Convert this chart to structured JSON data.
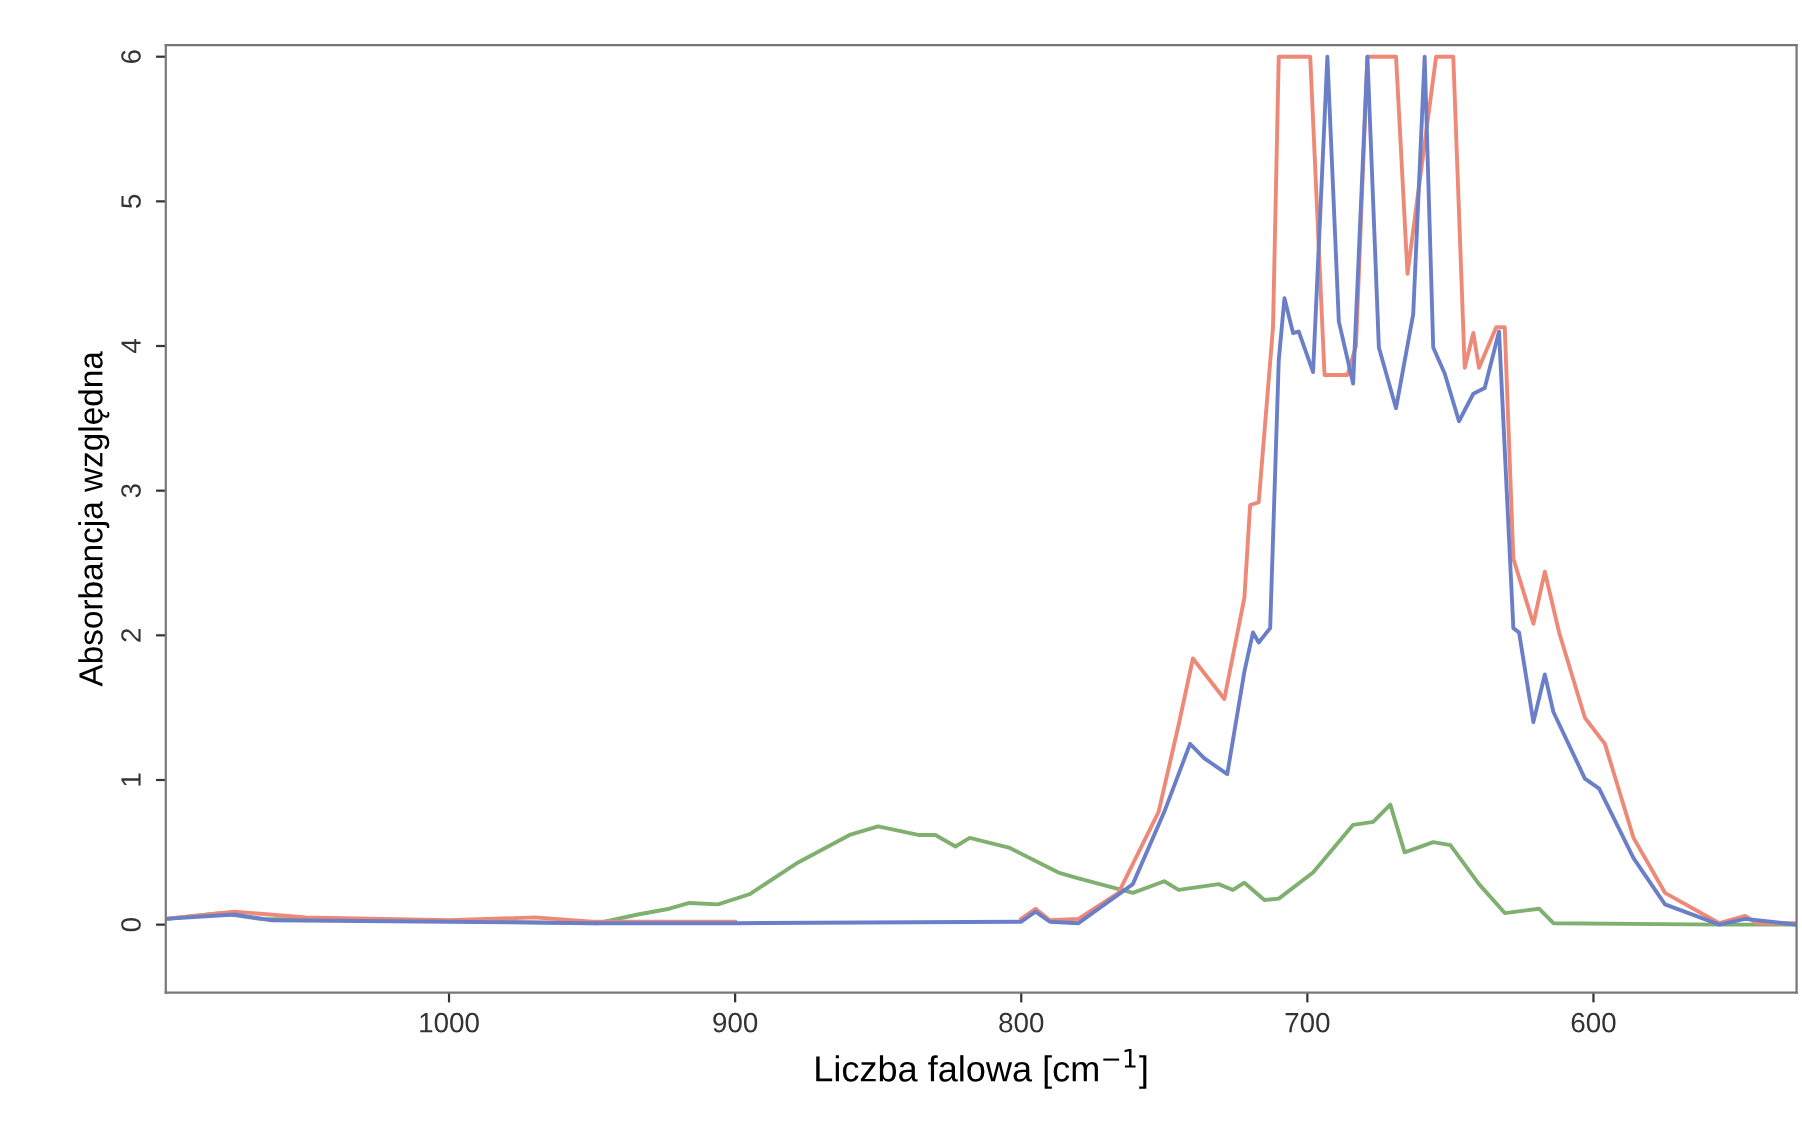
{
  "chart_data": {
    "type": "line",
    "xlabel": "Liczba falowa [cm$^{−1}$]",
    "ylabel": "Absorbancja względna",
    "xlim": [
      1099,
      529
    ],
    "ylim": [
      -0.47,
      6.08
    ],
    "xticks": [
      1000,
      900,
      800,
      700,
      600
    ],
    "yticks": [
      0,
      1,
      2,
      3,
      4,
      5,
      6
    ],
    "series": [
      {
        "color": "#7fb070",
        "x": [
          1099,
          1080,
          1066,
          1017,
          948,
          934,
          923,
          916,
          906,
          895,
          878,
          860,
          850,
          836,
          830,
          823,
          818,
          804,
          787,
          780,
          761,
          750,
          745,
          731,
          726,
          722,
          715,
          710,
          698,
          684,
          677,
          671,
          666,
          656,
          650,
          640,
          631,
          619,
          614,
          556,
          529
        ],
        "values": [
          0.04,
          0.08,
          0.04,
          0.03,
          0.01,
          0.07,
          0.11,
          0.15,
          0.14,
          0.21,
          0.43,
          0.62,
          0.68,
          0.62,
          0.62,
          0.54,
          0.6,
          0.53,
          0.36,
          0.32,
          0.22,
          0.3,
          0.24,
          0.28,
          0.24,
          0.29,
          0.17,
          0.18,
          0.36,
          0.69,
          0.71,
          0.83,
          0.5,
          0.57,
          0.55,
          0.28,
          0.08,
          0.11,
          0.01,
          0.0,
          0.0
        ]
      },
      {
        "color": "#ee8877",
        "x": [
          1099,
          1075,
          1050,
          1000,
          970,
          950,
          900,
          850,
          800,
          795,
          790,
          780,
          766,
          752,
          745,
          740,
          729,
          722,
          720,
          717,
          712,
          710,
          699,
          694,
          686,
          683,
          679,
          669,
          665,
          655,
          649,
          645,
          642,
          640,
          634,
          631,
          628,
          621,
          617,
          612,
          603,
          596,
          586,
          575,
          556,
          547,
          543,
          529
        ],
        "values": [
          0.04,
          0.09,
          0.05,
          0.03,
          0.05,
          0.02,
          0.02,
          null,
          0.04,
          0.11,
          0.03,
          0.04,
          0.22,
          0.78,
          1.38,
          1.84,
          1.56,
          2.26,
          2.9,
          2.92,
          4.13,
          6.0,
          6.0,
          3.8,
          3.8,
          4.0,
          6.0,
          6.0,
          4.5,
          6.0,
          6.0,
          3.85,
          4.09,
          3.85,
          4.13,
          4.13,
          2.53,
          2.08,
          2.44,
          2.02,
          1.43,
          1.25,
          0.6,
          0.22,
          0.01,
          0.06,
          0.01,
          0.01
        ]
      },
      {
        "color": "#6a7fc8",
        "x": [
          1099,
          1075,
          1062,
          1000,
          950,
          900,
          800,
          795,
          790,
          780,
          761,
          750,
          741,
          736,
          728,
          722,
          719,
          717,
          713,
          710,
          708,
          705,
          703,
          698,
          693,
          689,
          684,
          679,
          675,
          669,
          663,
          659,
          656,
          652,
          647,
          642,
          638,
          633,
          628,
          626,
          621,
          617,
          614,
          603,
          598,
          586,
          575,
          556,
          547,
          529
        ],
        "values": [
          0.04,
          0.07,
          0.03,
          0.02,
          0.01,
          0.01,
          0.02,
          0.09,
          0.02,
          0.01,
          0.28,
          0.78,
          1.25,
          1.15,
          1.04,
          1.75,
          2.02,
          1.95,
          2.05,
          3.9,
          4.33,
          4.09,
          4.1,
          3.82,
          6.0,
          4.17,
          3.74,
          6.0,
          3.99,
          3.57,
          4.22,
          6.0,
          3.99,
          3.81,
          3.48,
          3.67,
          3.71,
          4.1,
          2.05,
          2.02,
          1.4,
          1.73,
          1.47,
          1.01,
          0.94,
          0.46,
          0.14,
          0.0,
          0.04,
          0.0
        ]
      }
    ]
  }
}
